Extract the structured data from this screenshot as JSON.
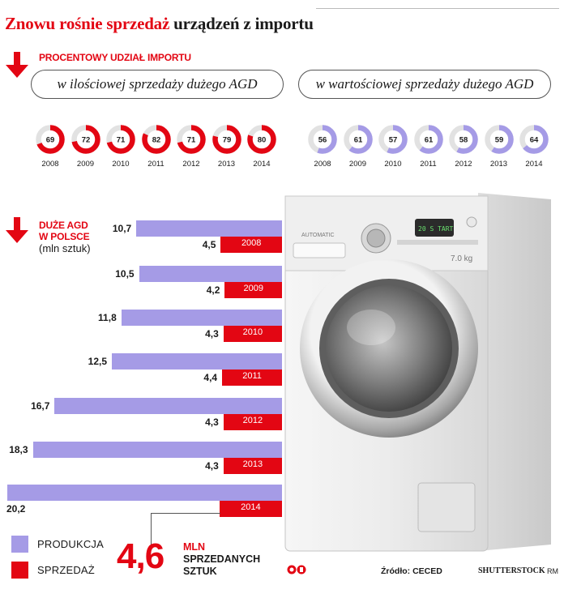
{
  "header": {
    "title_part1": "Znowu rośnie sprzedaż",
    "title_part2": "urządzeń z importu"
  },
  "import_section": {
    "label": "PROCENTOWY UDZIAŁ IMPORTU",
    "pill_left": "w ilościowej sprzedaży dużego AGD",
    "pill_right": "w wartościowej sprzedaży dużego AGD"
  },
  "bars_section": {
    "label_line1": "DUŻE AGD",
    "label_line2": "W POLSCE",
    "unit": "(mln sztuk)"
  },
  "colors": {
    "red": "#e30613",
    "lavender": "#a59be6",
    "donut_track": "#e2e2e2"
  },
  "chart_data": [
    {
      "type": "pie",
      "subtitle": "w ilościowej sprzedaży dużego AGD",
      "categories": [
        "2008",
        "2009",
        "2010",
        "2011",
        "2012",
        "2013",
        "2014"
      ],
      "values": [
        69,
        72,
        71,
        82,
        71,
        79,
        80
      ],
      "color": "#e30613"
    },
    {
      "type": "pie",
      "subtitle": "w wartościowej sprzedaży dużego AGD",
      "categories": [
        "2008",
        "2009",
        "2010",
        "2011",
        "2012",
        "2013",
        "2014"
      ],
      "values": [
        56,
        61,
        57,
        61,
        58,
        59,
        64
      ],
      "color": "#a59be6"
    },
    {
      "type": "bar",
      "title": "DUŻE AGD W POLSCE",
      "ylabel": "(mln sztuk)",
      "categories": [
        "2008",
        "2009",
        "2010",
        "2011",
        "2012",
        "2013",
        "2014"
      ],
      "series": [
        {
          "name": "PRODUKCJA",
          "values": [
            10.7,
            10.5,
            11.8,
            12.5,
            16.7,
            18.3,
            20.2
          ],
          "color": "#a59be6",
          "labels": [
            "10,7",
            "10,5",
            "11,8",
            "12,5",
            "16,7",
            "18,3",
            "20,2"
          ]
        },
        {
          "name": "SPRZEDAŻ",
          "values": [
            4.5,
            4.2,
            4.3,
            4.4,
            4.3,
            4.3,
            4.6
          ],
          "color": "#e30613",
          "labels": [
            "4,5",
            "4,2",
            "4,3",
            "4,4",
            "4,3",
            "4,3",
            ""
          ]
        }
      ]
    }
  ],
  "legend": {
    "production": "PRODUKCJA",
    "sales": "SPRZEDAŻ"
  },
  "callout": {
    "value": "4,6",
    "unit_line1": "MLN",
    "unit_line2": "SPRZEDANYCH",
    "unit_line3": "SZTUK"
  },
  "footer": {
    "source": "Źródło: CECED",
    "credit": "SHUTTERSTOCK",
    "author": "RM"
  },
  "machine": {
    "brand": "AUTOMATIC",
    "capacity": "7.0 kg",
    "display": "20 S  TART"
  }
}
